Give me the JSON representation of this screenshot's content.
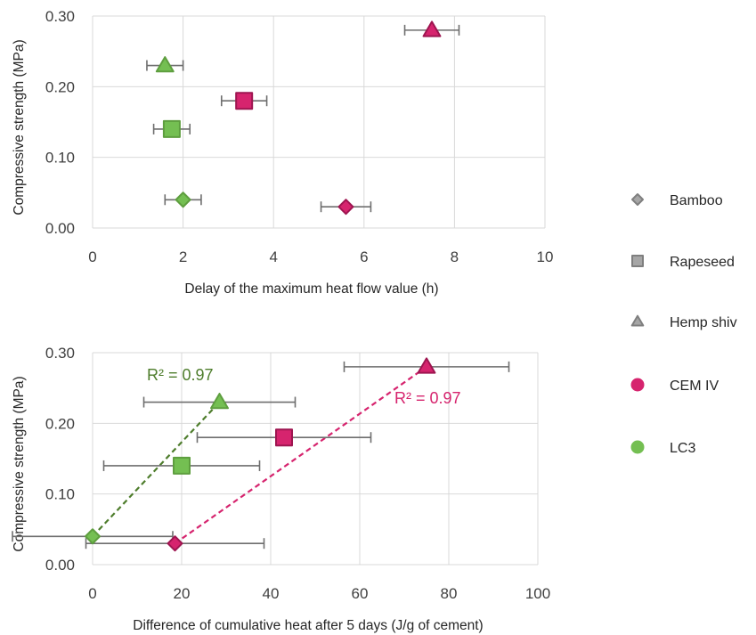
{
  "colors": {
    "cem_iv": "#d6246e",
    "lc3": "#74bf52",
    "trend_cem_iv": "#d6246e",
    "trend_lc3": "#4e7d2c",
    "legend_marker": "#7f7f7f",
    "error_bar": "#6e6e6e",
    "gridline": "#d9d9d9"
  },
  "legend": {
    "position": "right",
    "items": [
      {
        "label": "Bamboo",
        "marker": "diamond",
        "color": "#7f7f7f"
      },
      {
        "label": "Rapeseed",
        "marker": "square",
        "color": "#7f7f7f"
      },
      {
        "label": "Hemp shiv",
        "marker": "triangle",
        "color": "#7f7f7f"
      },
      {
        "label": "CEM IV",
        "marker": "circle",
        "color": "#d6246e"
      },
      {
        "label": "LC3",
        "marker": "circle",
        "color": "#74bf52"
      }
    ]
  },
  "chart_data": [
    {
      "type": "scatter",
      "xlabel": "Delay of the maximum heat flow value (h)",
      "ylabel": "Compressive strength (MPa)",
      "xlim": [
        0,
        10
      ],
      "ylim": [
        0,
        0.3
      ],
      "xticks": [
        "0",
        "2",
        "4",
        "6",
        "8",
        "10"
      ],
      "yticks": [
        "0.00",
        "0.10",
        "0.20",
        "0.30"
      ],
      "grid": "vertical gridlines",
      "points": [
        {
          "cement": "CEM IV",
          "fiber": "Hemp shiv",
          "x": 7.5,
          "y": 0.28,
          "xerr": 0.6
        },
        {
          "cement": "CEM IV",
          "fiber": "Rapeseed",
          "x": 3.35,
          "y": 0.18,
          "xerr": 0.5
        },
        {
          "cement": "CEM IV",
          "fiber": "Bamboo",
          "x": 5.6,
          "y": 0.03,
          "xerr": 0.55
        },
        {
          "cement": "LC3",
          "fiber": "Hemp shiv",
          "x": 1.6,
          "y": 0.23,
          "xerr": 0.4
        },
        {
          "cement": "LC3",
          "fiber": "Rapeseed",
          "x": 1.75,
          "y": 0.14,
          "xerr": 0.4
        },
        {
          "cement": "LC3",
          "fiber": "Bamboo",
          "x": 2.0,
          "y": 0.04,
          "xerr": 0.4
        }
      ]
    },
    {
      "type": "scatter",
      "xlabel": "Difference of cumulative heat after 5 days (J/g of cement)",
      "ylabel": "Compressive strength (MPa)",
      "xlim": [
        0,
        100
      ],
      "ylim": [
        0,
        0.3
      ],
      "xticks": [
        "0",
        "20",
        "40",
        "60",
        "80",
        "100"
      ],
      "yticks": [
        "0.00",
        "0.10",
        "0.20",
        "0.30"
      ],
      "grid": "vertical gridlines",
      "points": [
        {
          "cement": "CEM IV",
          "fiber": "Hemp shiv",
          "x": 75,
          "y": 0.28,
          "xerr": 18.5
        },
        {
          "cement": "CEM IV",
          "fiber": "Rapeseed",
          "x": 43,
          "y": 0.18,
          "xerr": 19.5
        },
        {
          "cement": "CEM IV",
          "fiber": "Bamboo",
          "x": 18.5,
          "y": 0.03,
          "xerr": 20
        },
        {
          "cement": "LC3",
          "fiber": "Hemp shiv",
          "x": 28.5,
          "y": 0.23,
          "xerr": 17
        },
        {
          "cement": "LC3",
          "fiber": "Rapeseed",
          "x": 20,
          "y": 0.14,
          "xerr": 17.5
        },
        {
          "cement": "LC3",
          "fiber": "Bamboo",
          "x": 0,
          "y": 0.04,
          "xerr": 18
        }
      ],
      "trendlines": [
        {
          "cement": "LC3",
          "from": [
            0,
            0.04
          ],
          "to": [
            28.5,
            0.23
          ],
          "label": "R² = 0.97"
        },
        {
          "cement": "CEM IV",
          "from": [
            18.5,
            0.03
          ],
          "to": [
            75,
            0.28
          ],
          "label": "R² = 0.97"
        }
      ]
    }
  ]
}
